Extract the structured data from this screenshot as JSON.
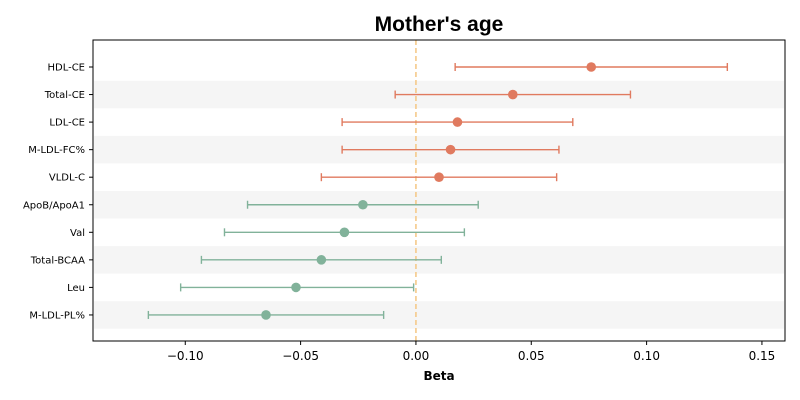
{
  "chart_data": {
    "type": "forest",
    "title": "Mother's age",
    "xlabel": "Beta",
    "xlim": [
      -0.14,
      0.16
    ],
    "xticks": [
      -0.1,
      -0.05,
      0.0,
      0.05,
      0.1,
      0.15
    ],
    "xtick_labels": [
      "−0.10",
      "−0.05",
      "0.00",
      "0.05",
      "0.10",
      "0.15"
    ],
    "reference_line": 0.0,
    "reference_color": "#f5c98a",
    "positive_color": "#e07a5f",
    "negative_color": "#81b29a",
    "band_color": "#f5f5f5",
    "grid": false,
    "rows": [
      {
        "label": "HDL-CE",
        "beta": 0.076,
        "lo": 0.017,
        "hi": 0.135
      },
      {
        "label": "Total-CE",
        "beta": 0.042,
        "lo": -0.009,
        "hi": 0.093
      },
      {
        "label": "LDL-CE",
        "beta": 0.018,
        "lo": -0.032,
        "hi": 0.068
      },
      {
        "label": "M-LDL-FC%",
        "beta": 0.015,
        "lo": -0.032,
        "hi": 0.062
      },
      {
        "label": "VLDL-C",
        "beta": 0.01,
        "lo": -0.041,
        "hi": 0.061
      },
      {
        "label": "ApoB/ApoA1",
        "beta": -0.023,
        "lo": -0.073,
        "hi": 0.027
      },
      {
        "label": "Val",
        "beta": -0.031,
        "lo": -0.083,
        "hi": 0.021
      },
      {
        "label": "Total-BCAA",
        "beta": -0.041,
        "lo": -0.093,
        "hi": 0.011
      },
      {
        "label": "Leu",
        "beta": -0.052,
        "lo": -0.102,
        "hi": -0.001
      },
      {
        "label": "M-LDL-PL%",
        "beta": -0.065,
        "lo": -0.116,
        "hi": -0.014
      }
    ]
  }
}
